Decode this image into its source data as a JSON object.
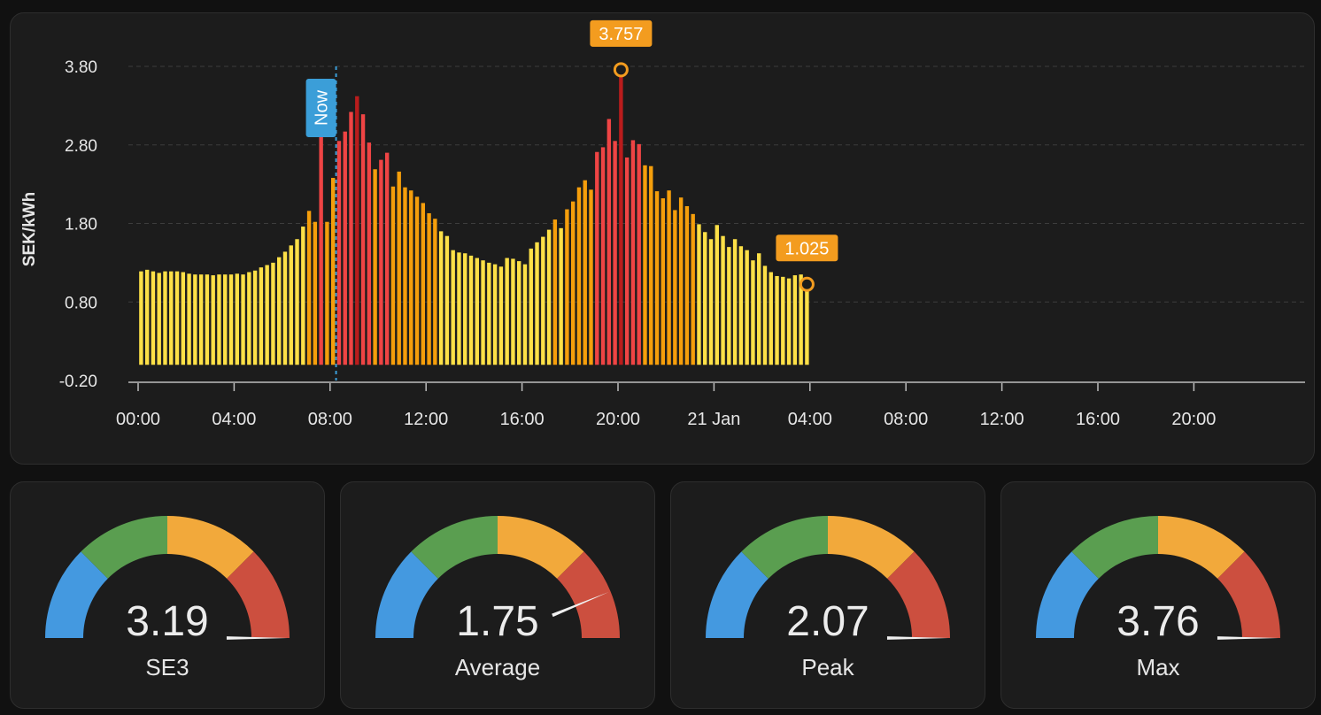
{
  "chart": {
    "now_label": "Now",
    "colors": {
      "low": "#fde047",
      "mid": "#f59e0b",
      "high": "#ef4444",
      "peak": "#b91c1c",
      "now_marker": "#3b9ed8",
      "callout": "#f39c1f"
    }
  },
  "chart_data": {
    "type": "bar",
    "ylabel": "SEK/kWh",
    "ylim": [
      -0.2,
      3.8
    ],
    "y_ticks": [
      "3.80",
      "2.80",
      "1.80",
      "0.80",
      "-0.20"
    ],
    "x_ticks": [
      "00:00",
      "04:00",
      "08:00",
      "12:00",
      "16:00",
      "20:00",
      "21 Jan",
      "04:00",
      "08:00",
      "12:00",
      "16:00",
      "20:00"
    ],
    "x_range_hours": [
      0,
      48
    ],
    "interval_minutes": 15,
    "now_hour": 8.25,
    "grid": true,
    "values": [
      1.19,
      1.21,
      1.19,
      1.17,
      1.19,
      1.19,
      1.19,
      1.18,
      1.16,
      1.15,
      1.15,
      1.15,
      1.14,
      1.15,
      1.15,
      1.15,
      1.16,
      1.15,
      1.18,
      1.2,
      1.24,
      1.27,
      1.3,
      1.37,
      1.44,
      1.52,
      1.6,
      1.76,
      1.96,
      1.82,
      2.92,
      1.82,
      2.38,
      2.85,
      2.97,
      3.22,
      3.42,
      3.19,
      2.83,
      2.49,
      2.61,
      2.7,
      2.27,
      2.46,
      2.26,
      2.22,
      2.14,
      2.06,
      1.93,
      1.86,
      1.7,
      1.64,
      1.46,
      1.43,
      1.42,
      1.39,
      1.36,
      1.33,
      1.3,
      1.28,
      1.25,
      1.36,
      1.35,
      1.32,
      1.28,
      1.48,
      1.56,
      1.63,
      1.72,
      1.85,
      1.74,
      1.98,
      2.08,
      2.26,
      2.35,
      2.23,
      2.71,
      2.77,
      3.13,
      2.85,
      3.76,
      2.64,
      2.86,
      2.81,
      2.54,
      2.53,
      2.21,
      2.12,
      2.22,
      1.97,
      2.13,
      2.02,
      1.92,
      1.79,
      1.69,
      1.6,
      1.78,
      1.64,
      1.5,
      1.6,
      1.51,
      1.46,
      1.33,
      1.42,
      1.26,
      1.18,
      1.13,
      1.12,
      1.1,
      1.14,
      1.15,
      1.03
    ],
    "annotations": [
      {
        "label": "3.757",
        "value": 3.757,
        "index": 80
      },
      {
        "label": "1.025",
        "value": 1.025,
        "index": 111
      }
    ]
  },
  "gauges": [
    {
      "label": "SE3",
      "value": "3.19",
      "level": 3.19
    },
    {
      "label": "Average",
      "value": "1.75",
      "level": 1.75
    },
    {
      "label": "Peak",
      "value": "2.07",
      "level": 2.07
    },
    {
      "label": "Max",
      "value": "3.76",
      "level": 3.76
    }
  ],
  "gauge_colors": [
    "#4499e0",
    "#5a9e50",
    "#f2a93b",
    "#cc4f3f"
  ]
}
